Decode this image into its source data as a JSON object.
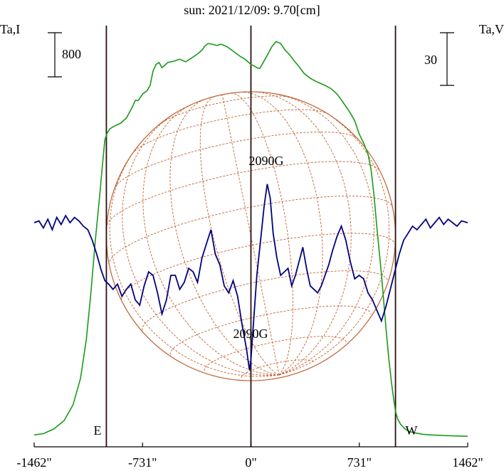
{
  "chart_data": {
    "type": "line",
    "title": "sun: 2021/12/09: 9.70[cm]",
    "left_axis_label": "Ta,I",
    "right_axis_label": "Ta,V",
    "left_scale_bar": "800",
    "right_scale_bar": "30",
    "x_ticks": [
      "-1462\"",
      "-731\"",
      "0\"",
      "731\"",
      "1462\""
    ],
    "x_tick_values": [
      -1462,
      -731,
      0,
      731,
      1462
    ],
    "xlim": [
      -1462,
      1462
    ],
    "limb_markers": [
      {
        "label": "E",
        "x": -975
      },
      {
        "label": "W",
        "x": 975
      }
    ],
    "annotations": [
      {
        "text": "2090G",
        "x": 110,
        "series": "V",
        "kind": "positive peak"
      },
      {
        "text": "2090G",
        "x": 0,
        "series": "V",
        "kind": "negative peak"
      }
    ],
    "colors": {
      "title": "#1a1a7a",
      "intensity": "#1a9a1a",
      "polarization": "#000080",
      "disk": "#c06030",
      "marker": "#2a1010",
      "background": "#ffffff"
    },
    "series": [
      {
        "key": "I",
        "color": "#1a9a1a",
        "ylim": [
          0,
          6250
        ],
        "x": [
          -1462,
          -1400,
          -1330,
          -1260,
          -1200,
          -1150,
          -1110,
          -1080,
          -1050,
          -1020,
          -1000,
          -985,
          -970,
          -950,
          -920,
          -880,
          -840,
          -800,
          -780,
          -760,
          -730,
          -700,
          -680,
          -660,
          -640,
          -620,
          -600,
          -560,
          -520,
          -480,
          -440,
          -400,
          -360,
          -330,
          -310,
          -290,
          -260,
          -230,
          -200,
          -160,
          -130,
          -100,
          -70,
          -40,
          -20,
          0,
          20,
          40,
          60,
          80,
          110,
          140,
          170,
          200,
          230,
          260,
          290,
          320,
          360,
          400,
          430,
          460,
          500,
          540,
          580,
          610,
          640,
          670,
          700,
          730,
          760,
          790,
          810,
          830,
          850,
          880,
          910,
          930,
          950,
          965,
          975,
          990,
          1010,
          1040,
          1070,
          1110,
          1160,
          1220,
          1300,
          1380,
          1462
        ],
        "values": [
          40,
          60,
          130,
          260,
          500,
          900,
          1500,
          2200,
          3000,
          3700,
          4200,
          4550,
          4650,
          4720,
          4760,
          4800,
          4880,
          5050,
          5150,
          5150,
          5250,
          5300,
          5380,
          5600,
          5700,
          5730,
          5650,
          5730,
          5750,
          5780,
          5740,
          5800,
          5860,
          5920,
          5980,
          6020,
          6010,
          5990,
          6010,
          5970,
          5920,
          5870,
          5820,
          5780,
          5740,
          5700,
          5680,
          5650,
          5640,
          5720,
          5840,
          5970,
          6050,
          6020,
          5920,
          5850,
          5760,
          5680,
          5560,
          5490,
          5450,
          5420,
          5380,
          5330,
          5250,
          5160,
          5060,
          4960,
          4840,
          4640,
          4500,
          4330,
          4100,
          3700,
          3200,
          2500,
          1700,
          1200,
          800,
          550,
          400,
          280,
          200,
          130,
          90,
          70,
          50,
          40,
          30,
          25,
          20
        ]
      },
      {
        "key": "V",
        "color": "#000080",
        "ylim": [
          -112,
          112
        ],
        "x": [
          -1462,
          -1430,
          -1400,
          -1370,
          -1340,
          -1310,
          -1280,
          -1250,
          -1220,
          -1190,
          -1160,
          -1130,
          -1100,
          -1070,
          -1040,
          -1010,
          -985,
          -960,
          -930,
          -900,
          -870,
          -840,
          -810,
          -780,
          -750,
          -720,
          -690,
          -660,
          -630,
          -600,
          -570,
          -540,
          -510,
          -480,
          -450,
          -420,
          -390,
          -360,
          -330,
          -300,
          -270,
          -240,
          -210,
          -180,
          -150,
          -120,
          -90,
          -60,
          -30,
          -10,
          0,
          15,
          40,
          70,
          90,
          110,
          130,
          150,
          175,
          200,
          225,
          250,
          275,
          300,
          325,
          350,
          375,
          400,
          425,
          450,
          475,
          500,
          525,
          550,
          580,
          610,
          640,
          670,
          700,
          730,
          760,
          790,
          820,
          850,
          880,
          910,
          940,
          970,
          1000,
          1030,
          1060,
          1090,
          1120,
          1150,
          1180,
          1210,
          1240,
          1270,
          1300,
          1330,
          1360,
          1390,
          1420,
          1462
        ],
        "values": [
          0,
          1,
          -3,
          2,
          -4,
          3,
          -1,
          4,
          0,
          3,
          1,
          -2,
          -4,
          -10,
          -18,
          -27,
          -33,
          -35,
          -38,
          -35,
          -42,
          -38,
          -35,
          -44,
          -47,
          -36,
          -28,
          -30,
          -40,
          -52,
          -44,
          -30,
          -30,
          -38,
          -34,
          -26,
          -28,
          -34,
          -20,
          -12,
          -4,
          -18,
          -24,
          -36,
          -40,
          -33,
          -42,
          -58,
          -72,
          -84,
          -78,
          -60,
          -30,
          -6,
          10,
          22,
          14,
          -6,
          -20,
          -30,
          -28,
          -26,
          -36,
          -30,
          -22,
          -14,
          -26,
          -36,
          -38,
          -40,
          -36,
          -30,
          -24,
          -16,
          -8,
          -2,
          -10,
          -22,
          -32,
          -30,
          -32,
          -40,
          -44,
          -50,
          -56,
          -48,
          -38,
          -28,
          -18,
          -10,
          -6,
          -2,
          -4,
          -1,
          2,
          -3,
          0,
          3,
          -1,
          2,
          0,
          -2,
          1,
          0
        ]
      }
    ]
  }
}
